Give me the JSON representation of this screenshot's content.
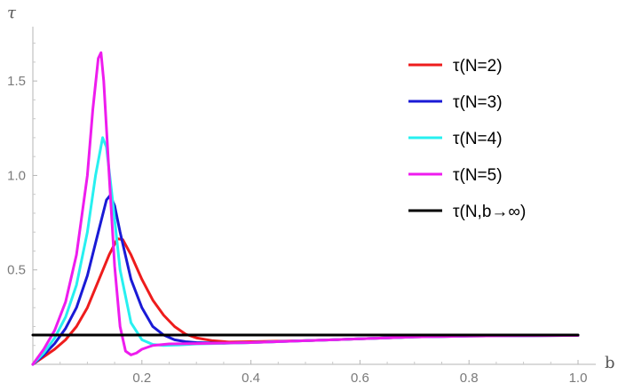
{
  "chart_data": {
    "type": "line",
    "xlabel": "b",
    "ylabel": "τ",
    "xlim": [
      0,
      1.0
    ],
    "ylim": [
      0,
      1.75
    ],
    "xticks": [
      0.2,
      0.4,
      0.6,
      0.8,
      1.0
    ],
    "xtick_labels": [
      "0.2",
      "0.4",
      "0.6",
      "0.8",
      "1.0"
    ],
    "yticks": [
      0.5,
      1.0,
      1.5
    ],
    "ytick_labels": [
      "0.5",
      "1.0",
      "1.5"
    ],
    "grid": false,
    "legend_position": "top-right",
    "series": [
      {
        "name": "τ(N=2)",
        "color": "#ee1c1c",
        "points": [
          [
            0,
            0
          ],
          [
            0.02,
            0.04
          ],
          [
            0.04,
            0.08
          ],
          [
            0.06,
            0.13
          ],
          [
            0.08,
            0.2
          ],
          [
            0.1,
            0.3
          ],
          [
            0.12,
            0.44
          ],
          [
            0.14,
            0.58
          ],
          [
            0.155,
            0.665
          ],
          [
            0.165,
            0.66
          ],
          [
            0.18,
            0.58
          ],
          [
            0.2,
            0.45
          ],
          [
            0.22,
            0.34
          ],
          [
            0.24,
            0.26
          ],
          [
            0.26,
            0.2
          ],
          [
            0.28,
            0.16
          ],
          [
            0.3,
            0.14
          ],
          [
            0.33,
            0.125
          ],
          [
            0.36,
            0.118
          ],
          [
            0.4,
            0.12
          ],
          [
            0.5,
            0.125
          ],
          [
            0.6,
            0.135
          ],
          [
            0.7,
            0.145
          ],
          [
            0.8,
            0.15
          ],
          [
            0.9,
            0.152
          ],
          [
            1.0,
            0.153
          ]
        ]
      },
      {
        "name": "τ(N=3)",
        "color": "#1a1ad6",
        "points": [
          [
            0,
            0
          ],
          [
            0.02,
            0.05
          ],
          [
            0.04,
            0.11
          ],
          [
            0.06,
            0.19
          ],
          [
            0.08,
            0.3
          ],
          [
            0.1,
            0.47
          ],
          [
            0.12,
            0.7
          ],
          [
            0.135,
            0.87
          ],
          [
            0.142,
            0.895
          ],
          [
            0.15,
            0.84
          ],
          [
            0.16,
            0.7
          ],
          [
            0.18,
            0.45
          ],
          [
            0.2,
            0.3
          ],
          [
            0.22,
            0.2
          ],
          [
            0.24,
            0.155
          ],
          [
            0.26,
            0.13
          ],
          [
            0.28,
            0.12
          ],
          [
            0.3,
            0.115
          ],
          [
            0.35,
            0.112
          ],
          [
            0.4,
            0.115
          ],
          [
            0.5,
            0.125
          ],
          [
            0.6,
            0.135
          ],
          [
            0.7,
            0.145
          ],
          [
            0.8,
            0.15
          ],
          [
            0.9,
            0.152
          ],
          [
            1.0,
            0.153
          ]
        ]
      },
      {
        "name": "τ(N=4)",
        "color": "#27f0f0",
        "points": [
          [
            0,
            0
          ],
          [
            0.02,
            0.06
          ],
          [
            0.04,
            0.14
          ],
          [
            0.06,
            0.25
          ],
          [
            0.08,
            0.42
          ],
          [
            0.1,
            0.7
          ],
          [
            0.115,
            1.0
          ],
          [
            0.128,
            1.2
          ],
          [
            0.135,
            1.15
          ],
          [
            0.145,
            0.9
          ],
          [
            0.16,
            0.5
          ],
          [
            0.18,
            0.22
          ],
          [
            0.2,
            0.13
          ],
          [
            0.22,
            0.105
          ],
          [
            0.24,
            0.1
          ],
          [
            0.27,
            0.103
          ],
          [
            0.3,
            0.108
          ],
          [
            0.4,
            0.115
          ],
          [
            0.5,
            0.125
          ],
          [
            0.6,
            0.135
          ],
          [
            0.7,
            0.145
          ],
          [
            0.8,
            0.15
          ],
          [
            0.9,
            0.152
          ],
          [
            1.0,
            0.153
          ]
        ]
      },
      {
        "name": "τ(N=5)",
        "color": "#ee1cee",
        "points": [
          [
            0,
            0
          ],
          [
            0.02,
            0.08
          ],
          [
            0.04,
            0.18
          ],
          [
            0.06,
            0.33
          ],
          [
            0.08,
            0.58
          ],
          [
            0.1,
            1.0
          ],
          [
            0.11,
            1.35
          ],
          [
            0.12,
            1.62
          ],
          [
            0.125,
            1.65
          ],
          [
            0.13,
            1.5
          ],
          [
            0.14,
            1.0
          ],
          [
            0.15,
            0.52
          ],
          [
            0.16,
            0.2
          ],
          [
            0.17,
            0.07
          ],
          [
            0.18,
            0.05
          ],
          [
            0.19,
            0.06
          ],
          [
            0.2,
            0.08
          ],
          [
            0.22,
            0.1
          ],
          [
            0.25,
            0.108
          ],
          [
            0.3,
            0.11
          ],
          [
            0.4,
            0.115
          ],
          [
            0.5,
            0.125
          ],
          [
            0.6,
            0.135
          ],
          [
            0.7,
            0.145
          ],
          [
            0.8,
            0.15
          ],
          [
            0.9,
            0.152
          ],
          [
            1.0,
            0.153
          ]
        ]
      },
      {
        "name": "τ(N,b→∞)",
        "color": "#000000",
        "points": [
          [
            0,
            0.155
          ],
          [
            1.0,
            0.155
          ]
        ]
      }
    ]
  }
}
